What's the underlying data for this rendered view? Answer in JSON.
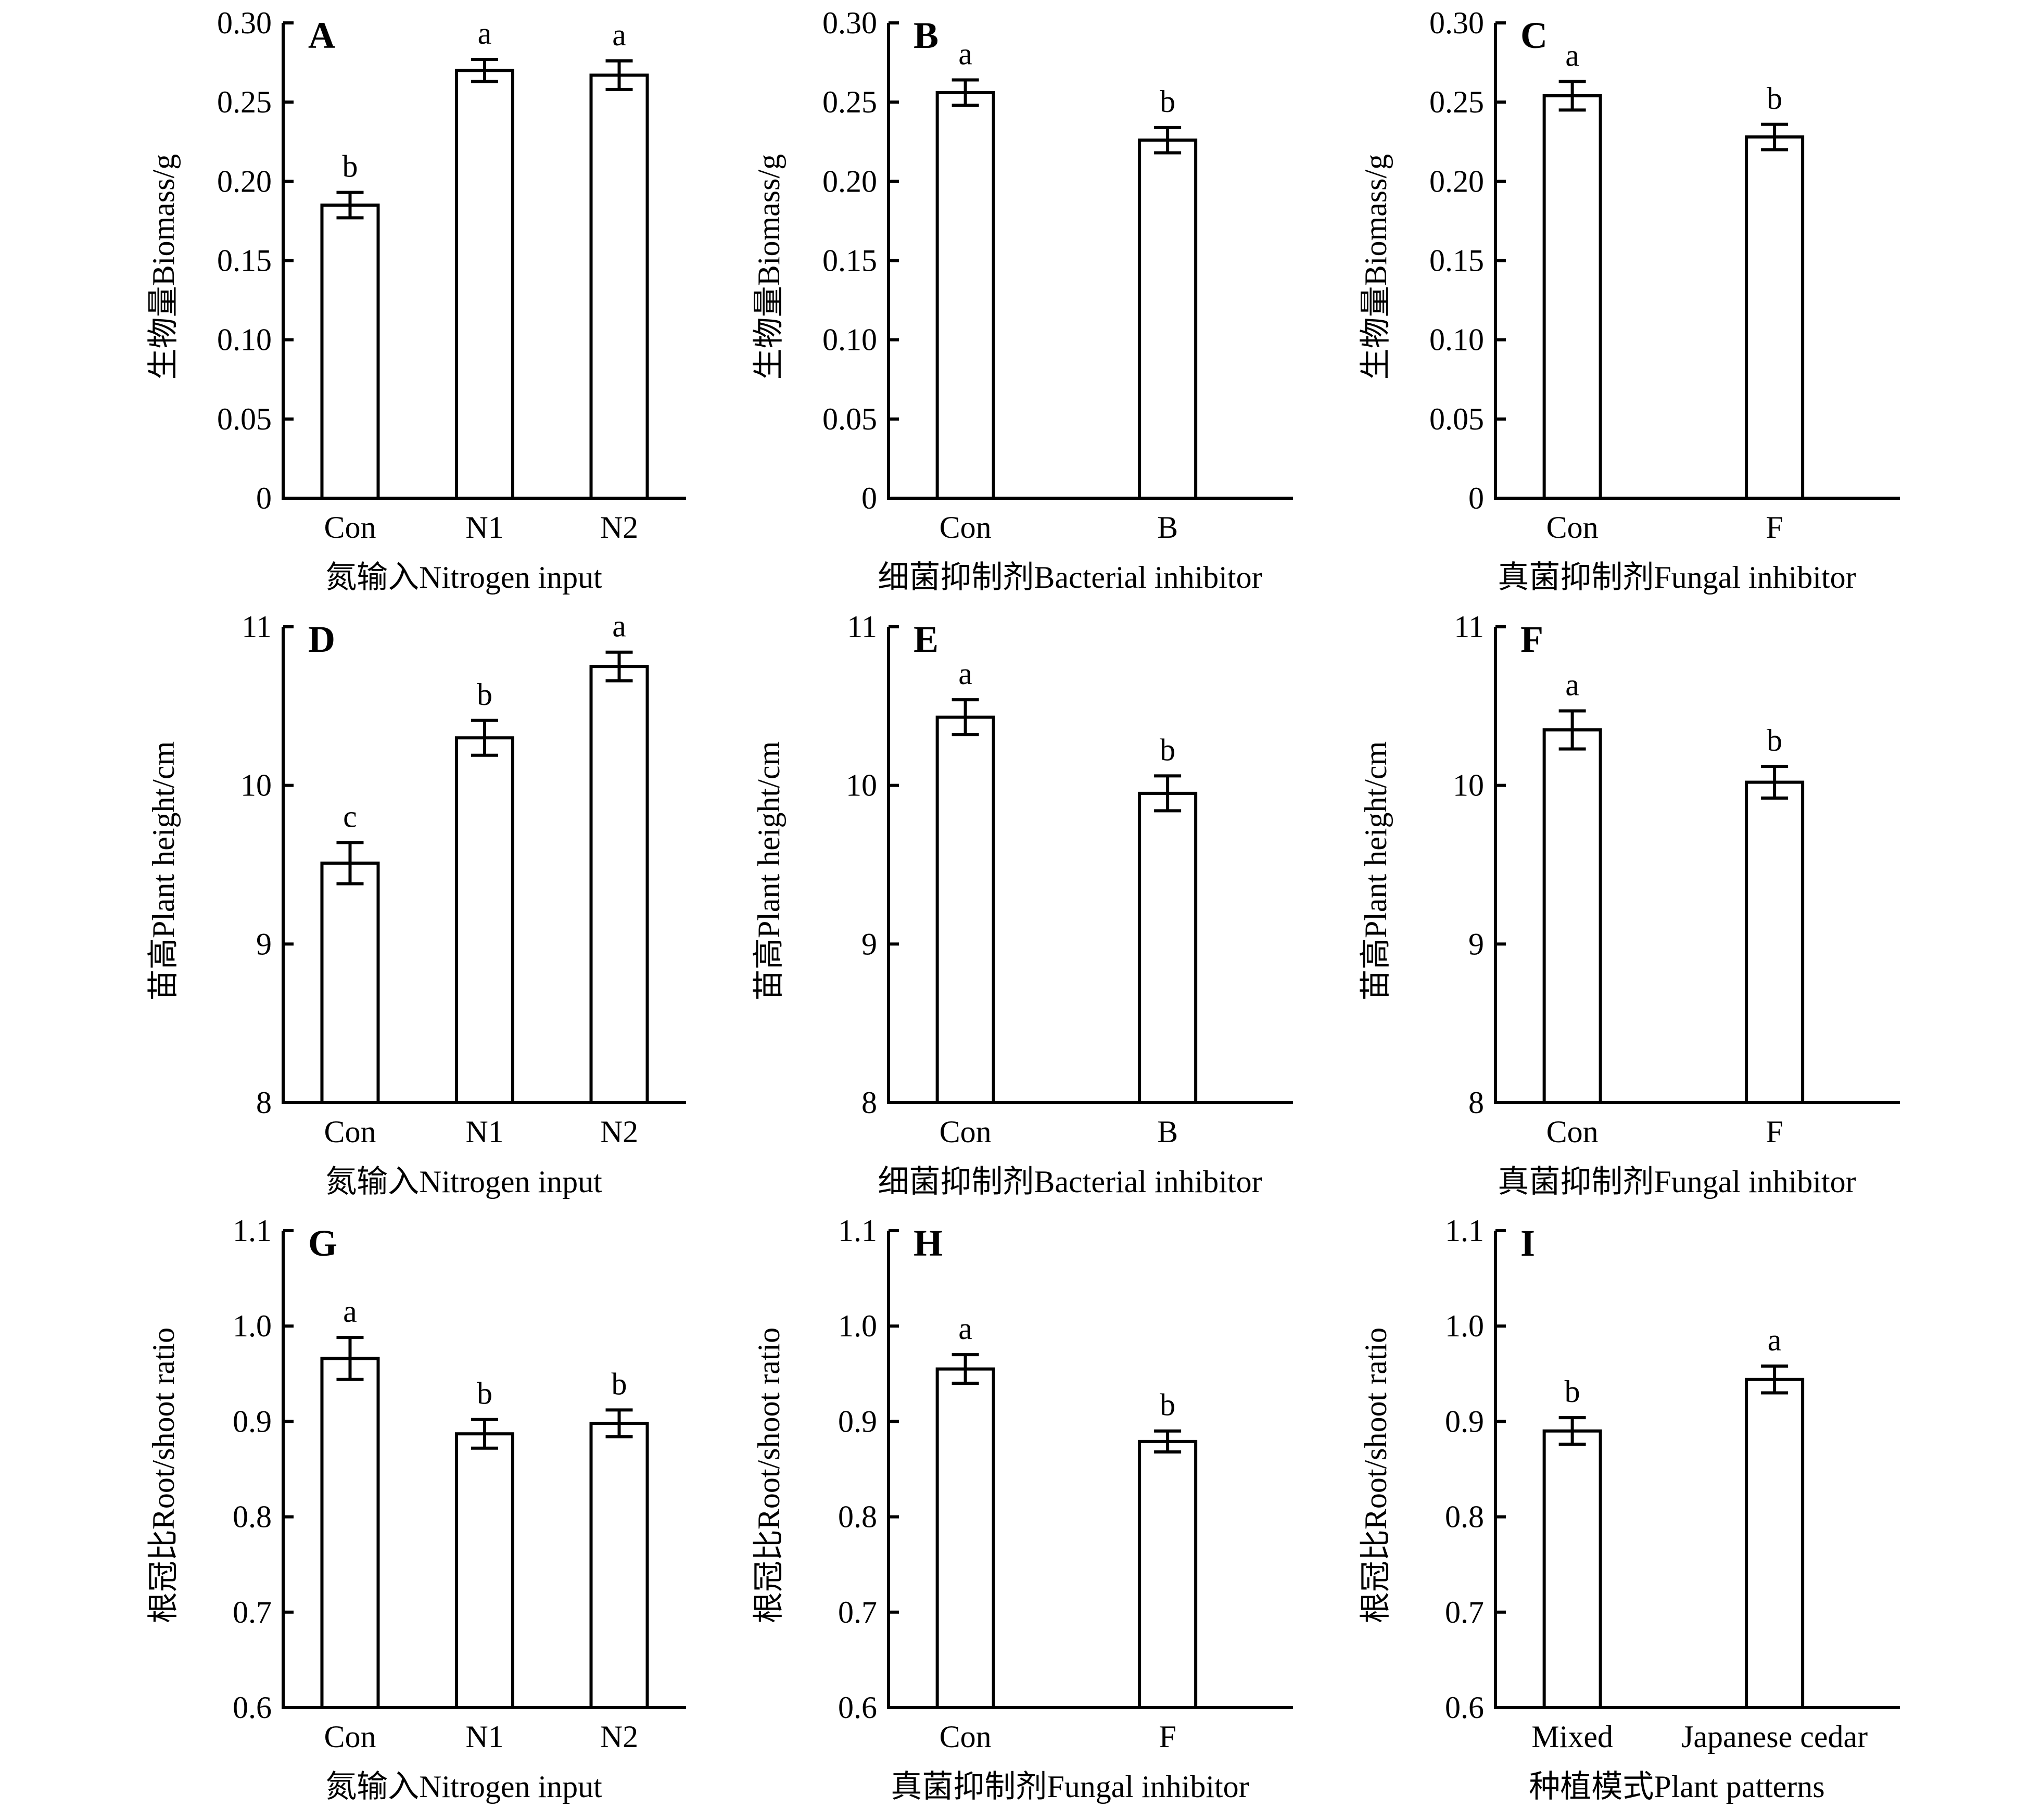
{
  "chart_data": [
    {
      "panel": "A",
      "type": "bar",
      "ylabel": "生物量Biomass/g",
      "xlabel": "氮输入Nitrogen input",
      "ylim": [
        0,
        0.3
      ],
      "yticks": [
        "0",
        "0.05",
        "0.10",
        "0.15",
        "0.20",
        "0.25",
        "0.30"
      ],
      "ytick_values": [
        0,
        0.05,
        0.1,
        0.15,
        0.2,
        0.25,
        0.3
      ],
      "categories": [
        "Con",
        "N1",
        "N2"
      ],
      "values": [
        0.185,
        0.27,
        0.267
      ],
      "errors": [
        0.008,
        0.007,
        0.009
      ],
      "letters": [
        "b",
        "a",
        "a"
      ]
    },
    {
      "panel": "B",
      "type": "bar",
      "ylabel": "生物量Biomass/g",
      "xlabel": "细菌抑制剂Bacterial inhibitor",
      "ylim": [
        0,
        0.3
      ],
      "yticks": [
        "0",
        "0.05",
        "0.10",
        "0.15",
        "0.20",
        "0.25",
        "0.30"
      ],
      "ytick_values": [
        0,
        0.05,
        0.1,
        0.15,
        0.2,
        0.25,
        0.3
      ],
      "categories": [
        "Con",
        "B"
      ],
      "values": [
        0.256,
        0.226
      ],
      "errors": [
        0.008,
        0.008
      ],
      "letters": [
        "a",
        "b"
      ]
    },
    {
      "panel": "C",
      "type": "bar",
      "ylabel": "生物量Biomass/g",
      "xlabel": "真菌抑制剂Fungal inhibitor",
      "ylim": [
        0,
        0.3
      ],
      "yticks": [
        "0",
        "0.05",
        "0.10",
        "0.15",
        "0.20",
        "0.25",
        "0.30"
      ],
      "ytick_values": [
        0,
        0.05,
        0.1,
        0.15,
        0.2,
        0.25,
        0.3
      ],
      "categories": [
        "Con",
        "F"
      ],
      "values": [
        0.254,
        0.228
      ],
      "errors": [
        0.009,
        0.008
      ],
      "letters": [
        "a",
        "b"
      ]
    },
    {
      "panel": "D",
      "type": "bar",
      "ylabel": "苗高Plant height/cm",
      "xlabel": "氮输入Nitrogen input",
      "ylim": [
        8,
        11
      ],
      "yticks": [
        "8",
        "9",
        "10",
        "11"
      ],
      "ytick_values": [
        8,
        9,
        10,
        11
      ],
      "categories": [
        "Con",
        "N1",
        "N2"
      ],
      "values": [
        9.51,
        10.3,
        10.75
      ],
      "errors": [
        0.13,
        0.11,
        0.09
      ],
      "letters": [
        "c",
        "b",
        "a"
      ]
    },
    {
      "panel": "E",
      "type": "bar",
      "ylabel": "苗高Plant height/cm",
      "xlabel": "细菌抑制剂Bacterial inhibitor",
      "ylim": [
        8,
        11
      ],
      "yticks": [
        "8",
        "9",
        "10",
        "11"
      ],
      "ytick_values": [
        8,
        9,
        10,
        11
      ],
      "categories": [
        "Con",
        "B"
      ],
      "values": [
        10.43,
        9.95
      ],
      "errors": [
        0.11,
        0.11
      ],
      "letters": [
        "a",
        "b"
      ]
    },
    {
      "panel": "F",
      "type": "bar",
      "ylabel": "苗高Plant height/cm",
      "xlabel": "真菌抑制剂Fungal inhibitor",
      "ylim": [
        8,
        11
      ],
      "yticks": [
        "8",
        "9",
        "10",
        "11"
      ],
      "ytick_values": [
        8,
        9,
        10,
        11
      ],
      "categories": [
        "Con",
        "F"
      ],
      "values": [
        10.35,
        10.02
      ],
      "errors": [
        0.12,
        0.1
      ],
      "letters": [
        "a",
        "b"
      ]
    },
    {
      "panel": "G",
      "type": "bar",
      "ylabel": "根冠比Root/shoot ratio",
      "xlabel": "氮输入Nitrogen input",
      "ylim": [
        0.6,
        1.1
      ],
      "yticks": [
        "0.6",
        "0.7",
        "0.8",
        "0.9",
        "1.0",
        "1.1"
      ],
      "ytick_values": [
        0.6,
        0.7,
        0.8,
        0.9,
        1.0,
        1.1
      ],
      "categories": [
        "Con",
        "N1",
        "N2"
      ],
      "values": [
        0.966,
        0.887,
        0.898
      ],
      "errors": [
        0.022,
        0.015,
        0.014
      ],
      "letters": [
        "a",
        "b",
        "b"
      ]
    },
    {
      "panel": "H",
      "type": "bar",
      "ylabel": "根冠比Root/shoot ratio",
      "xlabel": "真菌抑制剂Fungal inhibitor",
      "ylim": [
        0.6,
        1.1
      ],
      "yticks": [
        "0.6",
        "0.7",
        "0.8",
        "0.9",
        "1.0",
        "1.1"
      ],
      "ytick_values": [
        0.6,
        0.7,
        0.8,
        0.9,
        1.0,
        1.1
      ],
      "categories": [
        "Con",
        "F"
      ],
      "values": [
        0.955,
        0.879
      ],
      "errors": [
        0.015,
        0.011
      ],
      "letters": [
        "a",
        "b"
      ]
    },
    {
      "panel": "I",
      "type": "bar",
      "ylabel": "根冠比Root/shoot ratio",
      "xlabel": "种植模式Plant patterns",
      "ylim": [
        0.6,
        1.1
      ],
      "yticks": [
        "0.6",
        "0.7",
        "0.8",
        "0.9",
        "1.0",
        "1.1"
      ],
      "ytick_values": [
        0.6,
        0.7,
        0.8,
        0.9,
        1.0,
        1.1
      ],
      "categories": [
        "Mixed",
        "Japanese cedar"
      ],
      "values": [
        0.89,
        0.944
      ],
      "errors": [
        0.014,
        0.014
      ],
      "letters": [
        "b",
        "a"
      ]
    }
  ],
  "style": {
    "bar_fill": "#ffffff",
    "stroke": "#000000"
  }
}
